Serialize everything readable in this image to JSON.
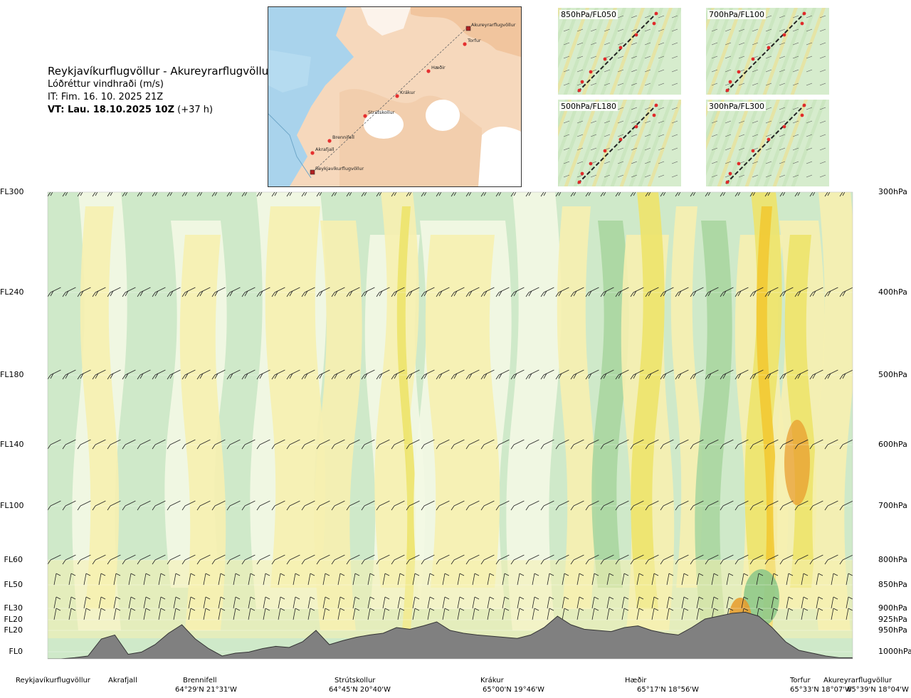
{
  "header": {
    "title": "Reykjavíkurflugvöllur - Akureyrarflugvöllur",
    "variable": "Lóðréttur vindhraði (m/s)",
    "it": "IT: Fim. 16. 10. 2025 21Z",
    "vt_label": "VT: Lau. 18.10.2025 10Z",
    "vt_offset": "(+37 h)"
  },
  "map": {
    "places": [
      {
        "name": "Akureyrarflugvöllur"
      },
      {
        "name": "Torfur"
      },
      {
        "name": "Hæðir"
      },
      {
        "name": "Krákur"
      },
      {
        "name": "Strútskollur"
      },
      {
        "name": "Brennifell"
      },
      {
        "name": "Akrafjall"
      },
      {
        "name": "Reykjavíkurflugvöllur"
      }
    ]
  },
  "level_maps": [
    {
      "label": "850hPa/FL050"
    },
    {
      "label": "700hPa/FL100"
    },
    {
      "label": "500hPa/FL180"
    },
    {
      "label": "300hPa/FL300"
    }
  ],
  "chart_data": {
    "type": "heatmap",
    "title": "Lóðréttur vindhraði (m/s)",
    "y_left_ticks": [
      "FL300",
      "FL240",
      "FL180",
      "FL140",
      "FL100",
      "FL60",
      "FL50",
      "FL30",
      "FL20",
      "FL20",
      "FL0"
    ],
    "y_right_ticks": [
      "300hPa",
      "400hPa",
      "500hPa",
      "600hPa",
      "700hPa",
      "800hPa",
      "850hPa",
      "900hPa",
      "925hPa",
      "950hPa",
      "1000hPa"
    ],
    "pressure_levels": [
      300,
      400,
      500,
      600,
      700,
      800,
      850,
      900,
      925,
      950,
      1000
    ],
    "x_locations": [
      {
        "name": "Reykjavíkurflugvöllur",
        "coord": ""
      },
      {
        "name": "Akrafjall",
        "coord": ""
      },
      {
        "name": "Brennifell",
        "coord": "64°29'N 21°31'W"
      },
      {
        "name": "Strútskollur",
        "coord": "64°45'N 20°40'W"
      },
      {
        "name": "Krákur",
        "coord": "65°00'N 19°46'W"
      },
      {
        "name": "Hæðir",
        "coord": "65°17'N 18°56'W"
      },
      {
        "name": "Torfur",
        "coord": "65°33'N 18°07'W"
      },
      {
        "name": "Akureyrarflugvöllur",
        "coord": "65°39'N 18°04'W"
      }
    ],
    "terrain": [
      0,
      0,
      0.02,
      0.05,
      0.35,
      0.42,
      0.08,
      0.12,
      0.25,
      0.45,
      0.6,
      0.35,
      0.18,
      0.05,
      0.1,
      0.12,
      0.18,
      0.22,
      0.2,
      0.3,
      0.5,
      0.25,
      0.32,
      0.38,
      0.42,
      0.45,
      0.55,
      0.52,
      0.58,
      0.65,
      0.5,
      0.45,
      0.42,
      0.4,
      0.38,
      0.36,
      0.42,
      0.55,
      0.75,
      0.6,
      0.52,
      0.5,
      0.48,
      0.55,
      0.58,
      0.5,
      0.45,
      0.42,
      0.55,
      0.7,
      0.75,
      0.8,
      0.82,
      0.75,
      0.55,
      0.3,
      0.15,
      0.1,
      0.05,
      0.02,
      0.02
    ],
    "color_scale": {
      "strong_down": "#8fc98a",
      "down": "#a9d6a0",
      "weak_down": "#cfe9c9",
      "near_zero": "#f3f8e4",
      "weak_up": "#f6f0b0",
      "up": "#ede36a",
      "strong_up": "#f2c933",
      "very_strong_up": "#e89a2a"
    },
    "terrain_color": "#808080"
  }
}
